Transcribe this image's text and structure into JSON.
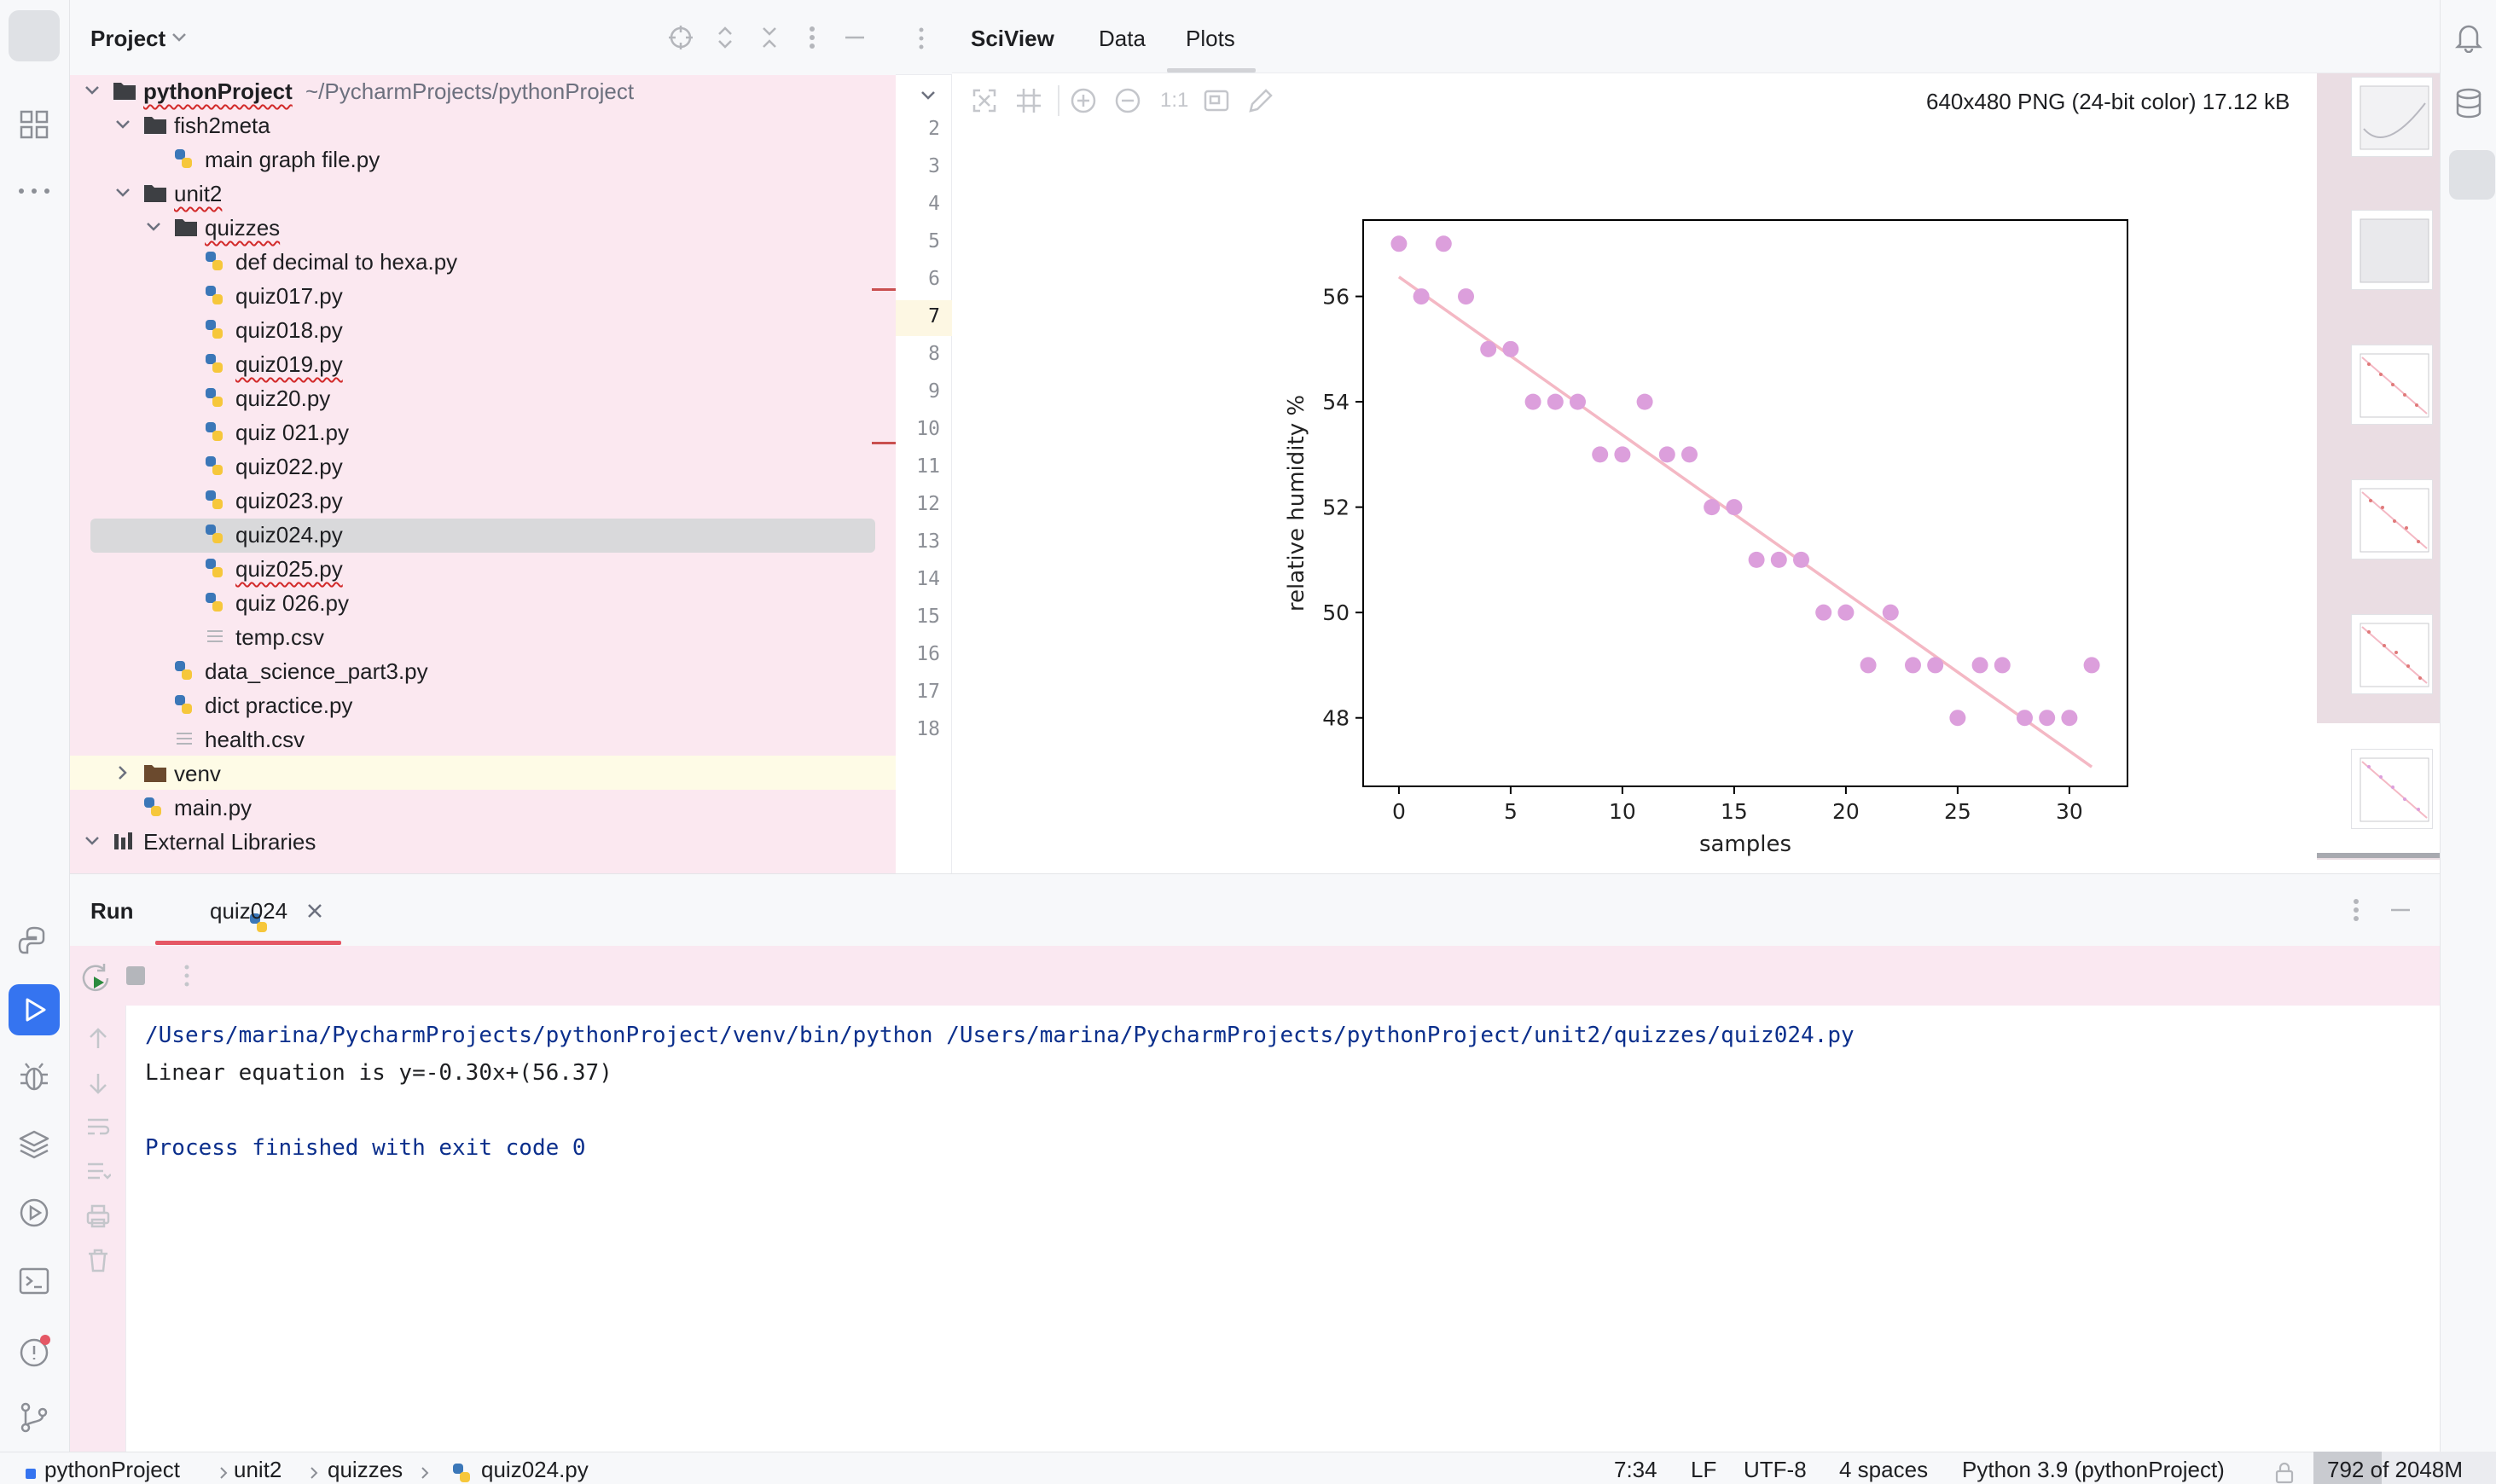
{
  "project_panel": {
    "title": "Project",
    "tree": [
      {
        "label": "pythonProject",
        "path": "~/PycharmProjects/pythonProject"
      },
      {
        "label": "fish2meta"
      },
      {
        "label": "main graph file.py"
      },
      {
        "label": "unit2"
      },
      {
        "label": "quizzes"
      },
      {
        "label": "def decimal to hexa.py"
      },
      {
        "label": "quiz017.py"
      },
      {
        "label": "quiz018.py"
      },
      {
        "label": "quiz019.py"
      },
      {
        "label": "quiz20.py"
      },
      {
        "label": "quiz 021.py"
      },
      {
        "label": "quiz022.py"
      },
      {
        "label": "quiz023.py"
      },
      {
        "label": "quiz024.py"
      },
      {
        "label": "quiz025.py"
      },
      {
        "label": "quiz 026.py"
      },
      {
        "label": "temp.csv"
      },
      {
        "label": "data_science_part3.py"
      },
      {
        "label": "dict practice.py"
      },
      {
        "label": "health.csv"
      },
      {
        "label": "venv"
      },
      {
        "label": "main.py"
      },
      {
        "label": "External Libraries"
      }
    ]
  },
  "editor": {
    "line_numbers": [
      "2",
      "3",
      "4",
      "5",
      "6",
      "7",
      "8",
      "9",
      "10",
      "11",
      "12",
      "13",
      "14",
      "15",
      "16",
      "17",
      "18"
    ]
  },
  "sciview": {
    "tabs": [
      "SciView",
      "Data",
      "Plots"
    ],
    "zoom_label": "1:1",
    "image_info": "640x480 PNG (24-bit color) 17.12 kB"
  },
  "run_panel": {
    "title": "Run",
    "tab_label": "quiz024",
    "console_lines": [
      "/Users/marina/PycharmProjects/pythonProject/venv/bin/python /Users/marina/PycharmProjects/pythonProject/unit2/quizzes/quiz024.py",
      "Linear equation is y=-0.30x+(56.37)",
      "",
      "Process finished with exit code 0"
    ]
  },
  "status_bar": {
    "breadcrumb": [
      "pythonProject",
      "unit2",
      "quizzes",
      "quiz024.py"
    ],
    "position": "7:34",
    "line_sep": "LF",
    "encoding": "UTF-8",
    "indent": "4 spaces",
    "interpreter": "Python 3.9 (pythonProject)",
    "memory": "792 of 2048M"
  },
  "colors": {
    "accent": "#3574f0",
    "tree_bg": "#fbe8f0",
    "run_bg": "#fae8f1",
    "point": "#dc9fdc",
    "fit_line": "#f4b8c4"
  },
  "chart_data": {
    "type": "scatter",
    "xlabel": "samples",
    "ylabel": "relative humidity %",
    "xlim": [
      -1.6,
      32.6
    ],
    "ylim": [
      46.7,
      57.45
    ],
    "xticks": [
      0,
      5,
      10,
      15,
      20,
      25,
      30
    ],
    "yticks": [
      48,
      50,
      52,
      54,
      56
    ],
    "x": [
      0,
      1,
      2,
      3,
      4,
      5,
      6,
      7,
      8,
      9,
      10,
      11,
      12,
      13,
      14,
      15,
      16,
      17,
      18,
      19,
      20,
      21,
      22,
      23,
      24,
      25,
      26,
      27,
      28,
      29,
      30,
      31
    ],
    "y": [
      57,
      56,
      57,
      56,
      55,
      55,
      54,
      54,
      54,
      53,
      53,
      54,
      53,
      53,
      52,
      52,
      51,
      51,
      51,
      50,
      50,
      49,
      50,
      49,
      49,
      48,
      49,
      49,
      48,
      48,
      48,
      49
    ],
    "fit_line": {
      "slope": -0.3,
      "intercept": 56.37
    }
  }
}
